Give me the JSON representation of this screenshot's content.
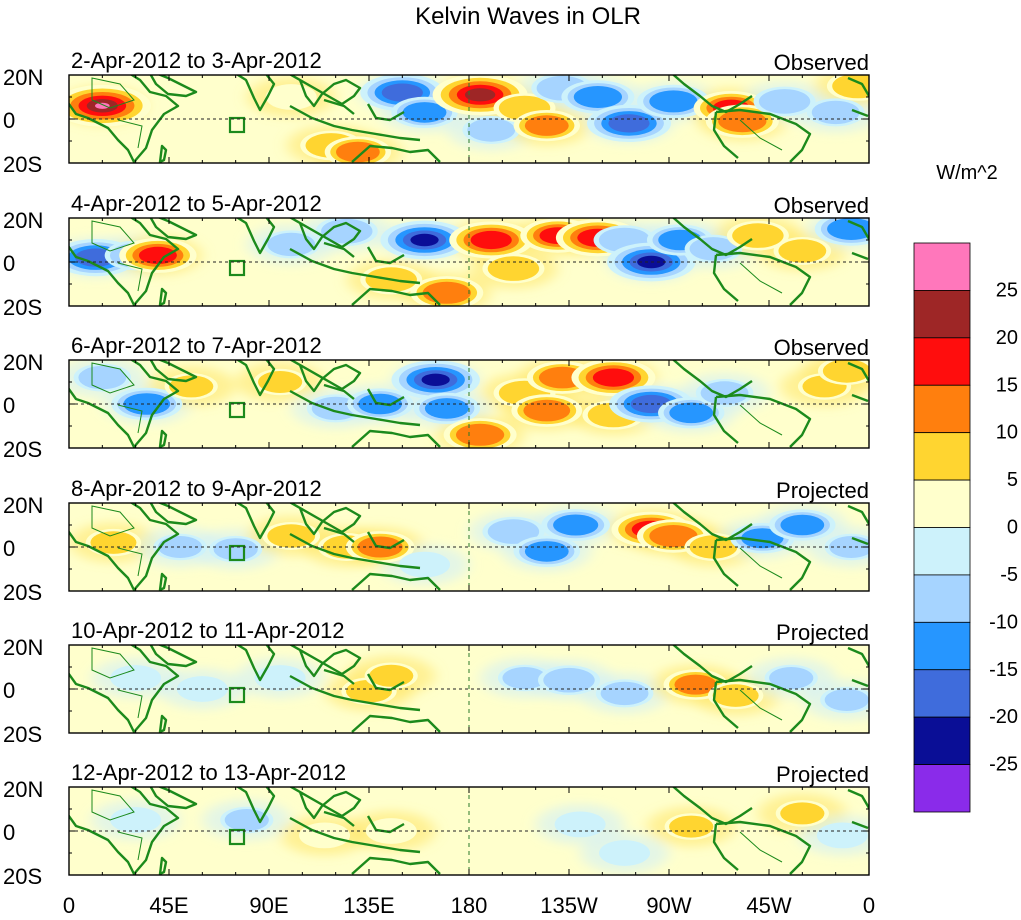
{
  "chart_data": {
    "type": "heatmap",
    "title": "Kelvin Waves in OLR",
    "variable": "OLR anomaly (Kelvin-wave filtered)",
    "colorbar": {
      "unit": "W/m^2",
      "tick_labels": [
        "25",
        "20",
        "15",
        "10",
        "5",
        "0",
        "-5",
        "-10",
        "-15",
        "-20",
        "-25"
      ],
      "levels": [
        -25,
        -20,
        -15,
        -10,
        -5,
        0,
        5,
        10,
        15,
        20,
        25
      ],
      "colors": [
        "#ff77bb",
        "#9e2626",
        "#ff0d0d",
        "#ff7f0e",
        "#ffd530",
        "#ffffcc",
        "#cdf2fb",
        "#a6d4ff",
        "#2696ff",
        "#3f6cdc",
        "#0a0e96",
        "#8a2bea"
      ]
    },
    "x_axis": {
      "tick_labels": [
        "0",
        "45E",
        "90E",
        "135E",
        "180",
        "135W",
        "90W",
        "45W",
        "0"
      ],
      "range_deg_east": [
        0,
        360
      ]
    },
    "y_axis": {
      "tick_labels": [
        "20N",
        "0",
        "20S"
      ],
      "range_deg_north": [
        -20,
        20
      ]
    },
    "panels": [
      {
        "period": "2-Apr-2012 to 3-Apr-2012",
        "status": "Observed",
        "anomalies": [
          {
            "lon": 15,
            "lat": 6,
            "value": 26
          },
          {
            "lon": 100,
            "lat": 10,
            "value": 5
          },
          {
            "lon": 118,
            "lat": -12,
            "value": 10
          },
          {
            "lon": 130,
            "lat": -15,
            "value": 12
          },
          {
            "lon": 150,
            "lat": 12,
            "value": -20
          },
          {
            "lon": 160,
            "lat": 3,
            "value": -12
          },
          {
            "lon": 185,
            "lat": 11,
            "value": 25
          },
          {
            "lon": 190,
            "lat": -5,
            "value": -8
          },
          {
            "lon": 205,
            "lat": 5,
            "value": 10
          },
          {
            "lon": 215,
            "lat": -3,
            "value": 12
          },
          {
            "lon": 222,
            "lat": 14,
            "value": -10
          },
          {
            "lon": 238,
            "lat": 10,
            "value": -15
          },
          {
            "lon": 252,
            "lat": -2,
            "value": -20
          },
          {
            "lon": 272,
            "lat": 8,
            "value": -15
          },
          {
            "lon": 298,
            "lat": 5,
            "value": 16
          },
          {
            "lon": 303,
            "lat": -1,
            "value": 15
          },
          {
            "lon": 322,
            "lat": 8,
            "value": -10
          },
          {
            "lon": 345,
            "lat": 3,
            "value": -8
          },
          {
            "lon": 355,
            "lat": 15,
            "value": 10
          }
        ]
      },
      {
        "period": "4-Apr-2012 to 5-Apr-2012",
        "status": "Observed",
        "anomalies": [
          {
            "lon": 12,
            "lat": 2,
            "value": -20
          },
          {
            "lon": 30,
            "lat": 3,
            "value": -10
          },
          {
            "lon": 40,
            "lat": 3,
            "value": 17
          },
          {
            "lon": 100,
            "lat": 8,
            "value": -8
          },
          {
            "lon": 125,
            "lat": 14,
            "value": -10
          },
          {
            "lon": 145,
            "lat": -8,
            "value": 10
          },
          {
            "lon": 160,
            "lat": 10,
            "value": -22
          },
          {
            "lon": 170,
            "lat": -14,
            "value": 15
          },
          {
            "lon": 190,
            "lat": 10,
            "value": 20
          },
          {
            "lon": 200,
            "lat": -3,
            "value": 10
          },
          {
            "lon": 220,
            "lat": 12,
            "value": 16
          },
          {
            "lon": 238,
            "lat": 11,
            "value": 20
          },
          {
            "lon": 250,
            "lat": 10,
            "value": -10
          },
          {
            "lon": 262,
            "lat": 0,
            "value": -22
          },
          {
            "lon": 275,
            "lat": 10,
            "value": -12
          },
          {
            "lon": 290,
            "lat": 6,
            "value": -8
          },
          {
            "lon": 310,
            "lat": 12,
            "value": 10
          },
          {
            "lon": 330,
            "lat": 5,
            "value": 8
          },
          {
            "lon": 352,
            "lat": 15,
            "value": -15
          }
        ]
      },
      {
        "period": "6-Apr-2012 to 7-Apr-2012",
        "status": "Observed",
        "anomalies": [
          {
            "lon": 15,
            "lat": 12,
            "value": -8
          },
          {
            "lon": 35,
            "lat": 0,
            "value": -14
          },
          {
            "lon": 55,
            "lat": 8,
            "value": 6
          },
          {
            "lon": 95,
            "lat": 10,
            "value": 6
          },
          {
            "lon": 120,
            "lat": -2,
            "value": -8
          },
          {
            "lon": 140,
            "lat": 0,
            "value": -12
          },
          {
            "lon": 165,
            "lat": 11,
            "value": -22
          },
          {
            "lon": 170,
            "lat": -2,
            "value": -12
          },
          {
            "lon": 185,
            "lat": -14,
            "value": 15
          },
          {
            "lon": 205,
            "lat": 5,
            "value": 10
          },
          {
            "lon": 215,
            "lat": -3,
            "value": 14
          },
          {
            "lon": 222,
            "lat": 12,
            "value": 14
          },
          {
            "lon": 245,
            "lat": 12,
            "value": 20
          },
          {
            "lon": 245,
            "lat": -5,
            "value": 10
          },
          {
            "lon": 262,
            "lat": 0,
            "value": -20
          },
          {
            "lon": 280,
            "lat": -4,
            "value": -12
          },
          {
            "lon": 295,
            "lat": 5,
            "value": -8
          },
          {
            "lon": 340,
            "lat": 8,
            "value": 6
          },
          {
            "lon": 350,
            "lat": 15,
            "value": 8
          }
        ]
      },
      {
        "period": "8-Apr-2012 to 9-Apr-2012",
        "status": "Projected",
        "anomalies": [
          {
            "lon": 20,
            "lat": 2,
            "value": 7
          },
          {
            "lon": 50,
            "lat": 0,
            "value": -6
          },
          {
            "lon": 75,
            "lat": -1,
            "value": -6
          },
          {
            "lon": 100,
            "lat": 5,
            "value": 8
          },
          {
            "lon": 125,
            "lat": 0,
            "value": 8
          },
          {
            "lon": 140,
            "lat": 0,
            "value": 13
          },
          {
            "lon": 160,
            "lat": -8,
            "value": -5
          },
          {
            "lon": 200,
            "lat": 7,
            "value": -10
          },
          {
            "lon": 215,
            "lat": -2,
            "value": -12
          },
          {
            "lon": 228,
            "lat": 10,
            "value": -13
          },
          {
            "lon": 262,
            "lat": 8,
            "value": 18
          },
          {
            "lon": 272,
            "lat": 5,
            "value": 15
          },
          {
            "lon": 290,
            "lat": 0,
            "value": 8
          },
          {
            "lon": 312,
            "lat": 4,
            "value": -11
          },
          {
            "lon": 330,
            "lat": 10,
            "value": -12
          },
          {
            "lon": 352,
            "lat": 0,
            "value": -6
          }
        ]
      },
      {
        "period": "10-Apr-2012 to 11-Apr-2012",
        "status": "Projected",
        "anomalies": [
          {
            "lon": 30,
            "lat": 5,
            "value": -5
          },
          {
            "lon": 60,
            "lat": 0,
            "value": -5
          },
          {
            "lon": 95,
            "lat": 5,
            "value": -5
          },
          {
            "lon": 135,
            "lat": -1,
            "value": 7
          },
          {
            "lon": 145,
            "lat": 6,
            "value": 6
          },
          {
            "lon": 205,
            "lat": 5,
            "value": -6
          },
          {
            "lon": 225,
            "lat": 4,
            "value": -10
          },
          {
            "lon": 250,
            "lat": -2,
            "value": -8
          },
          {
            "lon": 282,
            "lat": 2,
            "value": 11
          },
          {
            "lon": 300,
            "lat": -3,
            "value": 7
          },
          {
            "lon": 325,
            "lat": 5,
            "value": -6
          },
          {
            "lon": 350,
            "lat": -5,
            "value": -6
          }
        ]
      },
      {
        "period": "12-Apr-2012 to 13-Apr-2012",
        "status": "Projected",
        "anomalies": [
          {
            "lon": 30,
            "lat": 5,
            "value": -5
          },
          {
            "lon": 80,
            "lat": 5,
            "value": -6
          },
          {
            "lon": 115,
            "lat": -2,
            "value": 5
          },
          {
            "lon": 145,
            "lat": 0,
            "value": 5
          },
          {
            "lon": 230,
            "lat": 3,
            "value": -5
          },
          {
            "lon": 250,
            "lat": -10,
            "value": -5
          },
          {
            "lon": 280,
            "lat": 2,
            "value": 6
          },
          {
            "lon": 330,
            "lat": 8,
            "value": 6
          },
          {
            "lon": 348,
            "lat": -2,
            "value": -5
          }
        ]
      }
    ]
  }
}
